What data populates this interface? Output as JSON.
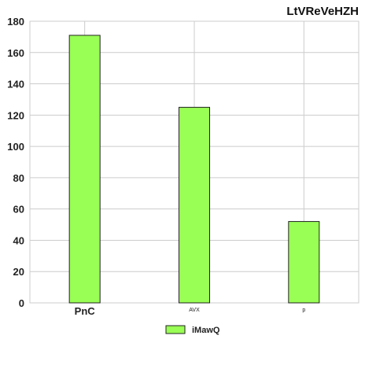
{
  "chart_data": {
    "type": "bar",
    "title": "LtVReVeHZH",
    "categories": [
      "PnC",
      "AVX",
      "p"
    ],
    "category_label_sizes": [
      "large",
      "small",
      "small"
    ],
    "series": [
      {
        "name": "iMawQ",
        "values": [
          171,
          125,
          52
        ],
        "color": "#99ff55"
      }
    ],
    "xlabel": "",
    "ylabel": "",
    "ylim": [
      0,
      180
    ],
    "yticks": [
      0,
      20,
      40,
      60,
      80,
      100,
      120,
      140,
      160,
      180
    ],
    "grid": true,
    "legend_position": "bottom-center"
  }
}
